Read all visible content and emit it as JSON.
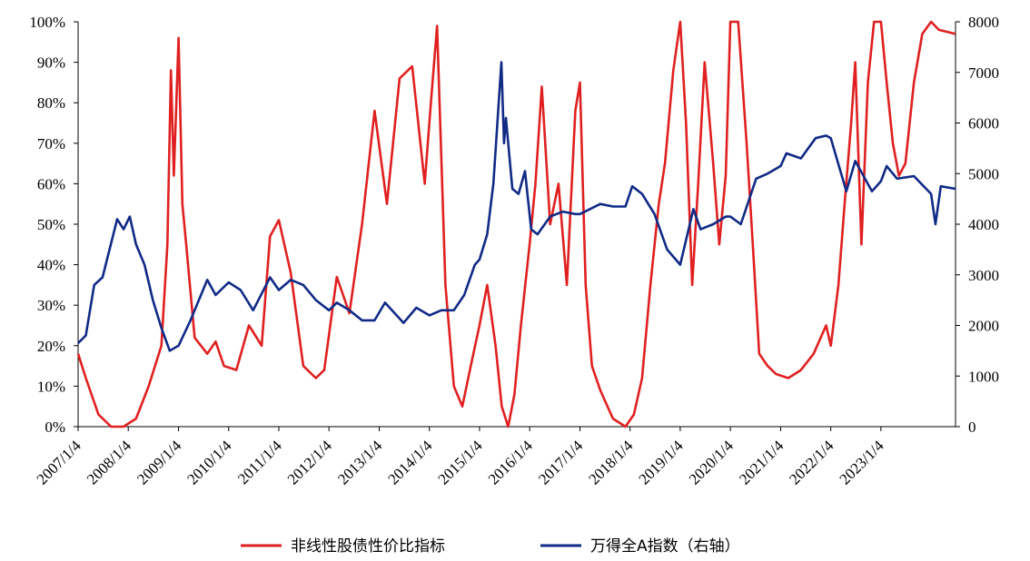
{
  "chart_data": {
    "type": "line",
    "x_tick_labels": [
      "2007/1/4",
      "2008/1/4",
      "2009/1/4",
      "2010/1/4",
      "2011/1/4",
      "2012/1/4",
      "2013/1/4",
      "2014/1/4",
      "2015/1/4",
      "2016/1/4",
      "2017/1/4",
      "2018/1/4",
      "2019/1/4",
      "2020/1/4",
      "2021/1/4",
      "2022/1/4",
      "2023/1/4"
    ],
    "x_range": [
      "2007-01-04",
      "2024-06-30"
    ],
    "y_left": {
      "ticks": [
        "0%",
        "10%",
        "20%",
        "30%",
        "40%",
        "50%",
        "60%",
        "70%",
        "80%",
        "90%",
        "100%"
      ],
      "range": [
        0,
        100
      ]
    },
    "y_right": {
      "ticks": [
        "0",
        "1000",
        "2000",
        "3000",
        "4000",
        "5000",
        "6000",
        "7000",
        "8000"
      ],
      "range": [
        0,
        8000
      ]
    },
    "grid": false,
    "legend_position": "bottom",
    "series": [
      {
        "name": "非线性股债性价比指标",
        "axis": "left",
        "color": "#e02020",
        "points": [
          [
            "2007-01-04",
            18
          ],
          [
            "2007-03-01",
            12
          ],
          [
            "2007-06-01",
            3
          ],
          [
            "2007-09-01",
            0
          ],
          [
            "2007-12-01",
            0
          ],
          [
            "2008-03-01",
            2
          ],
          [
            "2008-06-01",
            10
          ],
          [
            "2008-09-01",
            20
          ],
          [
            "2008-10-15",
            45
          ],
          [
            "2008-11-10",
            88
          ],
          [
            "2008-12-01",
            62
          ],
          [
            "2009-01-04",
            96
          ],
          [
            "2009-02-01",
            55
          ],
          [
            "2009-03-01",
            45
          ],
          [
            "2009-05-01",
            22
          ],
          [
            "2009-08-01",
            18
          ],
          [
            "2009-10-01",
            21
          ],
          [
            "2009-12-01",
            15
          ],
          [
            "2010-03-01",
            14
          ],
          [
            "2010-06-01",
            25
          ],
          [
            "2010-09-01",
            20
          ],
          [
            "2010-11-01",
            47
          ],
          [
            "2011-01-04",
            51
          ],
          [
            "2011-04-01",
            38
          ],
          [
            "2011-07-01",
            15
          ],
          [
            "2011-10-01",
            12
          ],
          [
            "2011-12-01",
            14
          ],
          [
            "2012-03-01",
            37
          ],
          [
            "2012-06-01",
            28
          ],
          [
            "2012-09-01",
            50
          ],
          [
            "2012-12-01",
            78
          ],
          [
            "2013-03-01",
            55
          ],
          [
            "2013-06-01",
            86
          ],
          [
            "2013-09-01",
            89
          ],
          [
            "2013-10-15",
            75
          ],
          [
            "2013-12-01",
            60
          ],
          [
            "2014-01-15",
            80
          ],
          [
            "2014-03-01",
            99
          ],
          [
            "2014-05-01",
            35
          ],
          [
            "2014-07-01",
            10
          ],
          [
            "2014-09-01",
            5
          ],
          [
            "2014-11-01",
            15
          ],
          [
            "2015-01-04",
            25
          ],
          [
            "2015-03-01",
            35
          ],
          [
            "2015-05-01",
            20
          ],
          [
            "2015-06-15",
            5
          ],
          [
            "2015-08-01",
            0
          ],
          [
            "2015-09-15",
            8
          ],
          [
            "2015-11-01",
            25
          ],
          [
            "2016-01-04",
            45
          ],
          [
            "2016-02-15",
            60
          ],
          [
            "2016-04-01",
            84
          ],
          [
            "2016-06-01",
            50
          ],
          [
            "2016-08-01",
            60
          ],
          [
            "2016-10-01",
            35
          ],
          [
            "2016-12-01",
            78
          ],
          [
            "2017-01-04",
            85
          ],
          [
            "2017-02-15",
            35
          ],
          [
            "2017-04-01",
            15
          ],
          [
            "2017-06-01",
            9
          ],
          [
            "2017-09-01",
            2
          ],
          [
            "2017-12-01",
            0
          ],
          [
            "2018-02-01",
            3
          ],
          [
            "2018-04-01",
            12
          ],
          [
            "2018-06-01",
            35
          ],
          [
            "2018-08-01",
            55
          ],
          [
            "2018-09-15",
            65
          ],
          [
            "2018-11-15",
            88
          ],
          [
            "2019-01-04",
            100
          ],
          [
            "2019-02-15",
            75
          ],
          [
            "2019-04-01",
            35
          ],
          [
            "2019-05-15",
            60
          ],
          [
            "2019-07-01",
            90
          ],
          [
            "2019-09-01",
            65
          ],
          [
            "2019-10-15",
            45
          ],
          [
            "2019-12-01",
            62
          ],
          [
            "2020-01-04",
            100
          ],
          [
            "2020-03-01",
            100
          ],
          [
            "2020-05-01",
            70
          ],
          [
            "2020-06-15",
            45
          ],
          [
            "2020-08-01",
            18
          ],
          [
            "2020-10-01",
            15
          ],
          [
            "2020-12-01",
            13
          ],
          [
            "2021-03-01",
            12
          ],
          [
            "2021-06-01",
            14
          ],
          [
            "2021-09-01",
            18
          ],
          [
            "2021-12-01",
            25
          ],
          [
            "2022-01-04",
            20
          ],
          [
            "2022-03-01",
            35
          ],
          [
            "2022-04-15",
            55
          ],
          [
            "2022-06-01",
            75
          ],
          [
            "2022-07-01",
            90
          ],
          [
            "2022-08-15",
            45
          ],
          [
            "2022-10-01",
            85
          ],
          [
            "2022-11-15",
            100
          ],
          [
            "2023-01-04",
            100
          ],
          [
            "2023-02-15",
            85
          ],
          [
            "2023-04-01",
            70
          ],
          [
            "2023-05-15",
            62
          ],
          [
            "2023-07-01",
            65
          ],
          [
            "2023-09-01",
            85
          ],
          [
            "2023-11-01",
            97
          ],
          [
            "2024-01-04",
            100
          ],
          [
            "2024-03-01",
            98
          ],
          [
            "2024-06-30",
            97
          ]
        ]
      },
      {
        "name": "万得全A指数（右轴）",
        "axis": "right",
        "color": "#102a86",
        "points": [
          [
            "2007-01-04",
            1650
          ],
          [
            "2007-03-01",
            1800
          ],
          [
            "2007-05-01",
            2800
          ],
          [
            "2007-07-01",
            2950
          ],
          [
            "2007-10-15",
            4100
          ],
          [
            "2007-12-01",
            3900
          ],
          [
            "2008-01-15",
            4150
          ],
          [
            "2008-03-01",
            3600
          ],
          [
            "2008-05-01",
            3200
          ],
          [
            "2008-07-01",
            2500
          ],
          [
            "2008-09-01",
            1950
          ],
          [
            "2008-11-01",
            1500
          ],
          [
            "2009-01-04",
            1600
          ],
          [
            "2009-04-01",
            2100
          ],
          [
            "2009-08-01",
            2900
          ],
          [
            "2009-10-01",
            2600
          ],
          [
            "2010-01-04",
            2850
          ],
          [
            "2010-04-01",
            2700
          ],
          [
            "2010-07-01",
            2300
          ],
          [
            "2010-11-01",
            2950
          ],
          [
            "2011-01-04",
            2700
          ],
          [
            "2011-04-01",
            2900
          ],
          [
            "2011-07-01",
            2800
          ],
          [
            "2011-10-01",
            2500
          ],
          [
            "2012-01-04",
            2300
          ],
          [
            "2012-03-01",
            2450
          ],
          [
            "2012-06-01",
            2300
          ],
          [
            "2012-09-01",
            2100
          ],
          [
            "2012-12-01",
            2100
          ],
          [
            "2013-02-15",
            2450
          ],
          [
            "2013-06-30",
            2050
          ],
          [
            "2013-10-01",
            2350
          ],
          [
            "2014-01-04",
            2200
          ],
          [
            "2014-04-01",
            2300
          ],
          [
            "2014-07-01",
            2300
          ],
          [
            "2014-09-15",
            2600
          ],
          [
            "2014-12-01",
            3200
          ],
          [
            "2015-01-04",
            3300
          ],
          [
            "2015-03-01",
            3800
          ],
          [
            "2015-04-15",
            4800
          ],
          [
            "2015-06-12",
            7200
          ],
          [
            "2015-07-01",
            5600
          ],
          [
            "2015-07-15",
            6100
          ],
          [
            "2015-08-31",
            4700
          ],
          [
            "2015-10-15",
            4600
          ],
          [
            "2015-12-01",
            5050
          ],
          [
            "2016-01-15",
            3900
          ],
          [
            "2016-03-01",
            3800
          ],
          [
            "2016-06-01",
            4150
          ],
          [
            "2016-09-01",
            4250
          ],
          [
            "2016-12-01",
            4200
          ],
          [
            "2017-01-04",
            4200
          ],
          [
            "2017-06-01",
            4400
          ],
          [
            "2017-09-01",
            4350
          ],
          [
            "2017-12-01",
            4350
          ],
          [
            "2018-01-20",
            4750
          ],
          [
            "2018-04-01",
            4600
          ],
          [
            "2018-07-01",
            4200
          ],
          [
            "2018-10-01",
            3500
          ],
          [
            "2019-01-04",
            3200
          ],
          [
            "2019-04-10",
            4300
          ],
          [
            "2019-06-01",
            3900
          ],
          [
            "2019-09-01",
            4000
          ],
          [
            "2019-12-01",
            4150
          ],
          [
            "2020-01-04",
            4150
          ],
          [
            "2020-03-20",
            4000
          ],
          [
            "2020-07-10",
            4900
          ],
          [
            "2020-10-01",
            5000
          ],
          [
            "2021-01-04",
            5150
          ],
          [
            "2021-02-15",
            5400
          ],
          [
            "2021-06-01",
            5300
          ],
          [
            "2021-09-15",
            5700
          ],
          [
            "2021-12-01",
            5750
          ],
          [
            "2022-01-04",
            5700
          ],
          [
            "2022-04-27",
            4650
          ],
          [
            "2022-07-01",
            5250
          ],
          [
            "2022-10-31",
            4650
          ],
          [
            "2023-01-04",
            4850
          ],
          [
            "2023-02-15",
            5150
          ],
          [
            "2023-05-01",
            4900
          ],
          [
            "2023-09-01",
            4950
          ],
          [
            "2024-01-04",
            4600
          ],
          [
            "2024-02-05",
            4000
          ],
          [
            "2024-03-15",
            4750
          ],
          [
            "2024-06-30",
            4700
          ]
        ]
      }
    ],
    "legend": [
      {
        "label": "非线性股债性价比指标",
        "color": "#e02020"
      },
      {
        "label": "万得全A指数（右轴）",
        "color": "#102a86"
      }
    ]
  }
}
